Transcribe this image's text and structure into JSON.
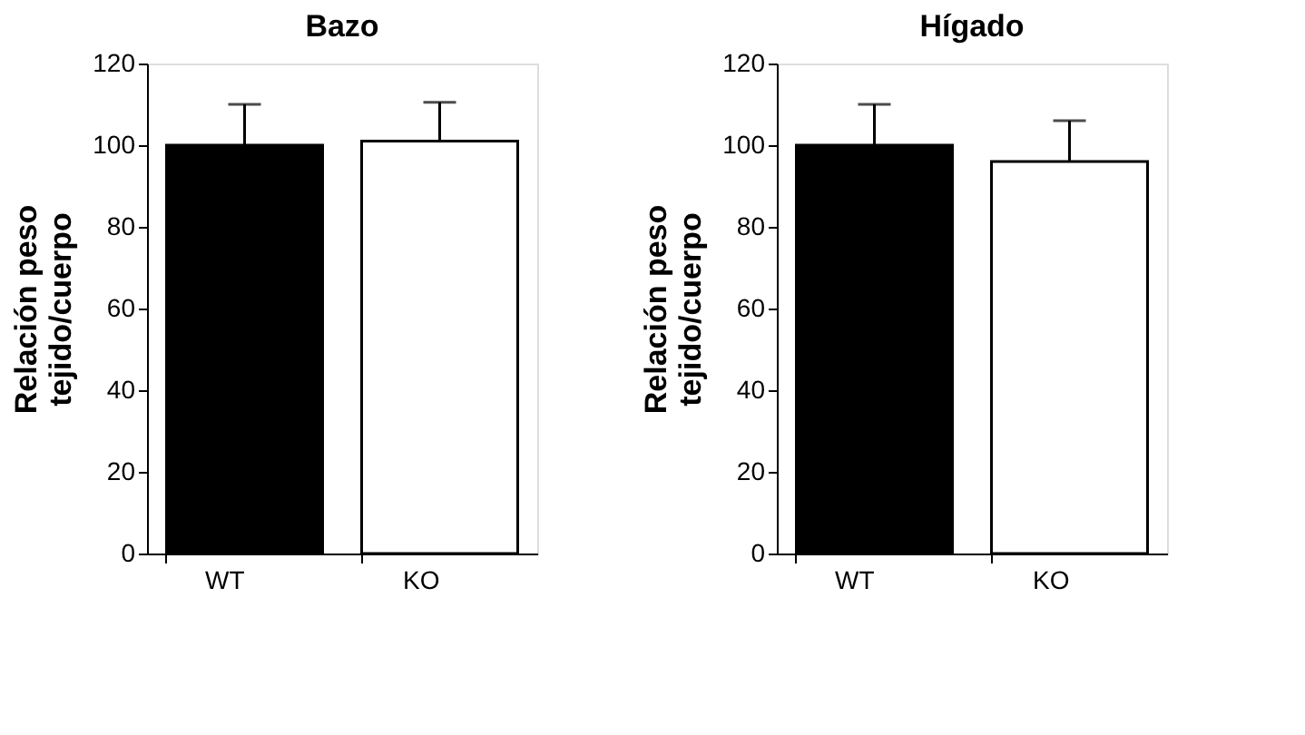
{
  "chart_data": [
    {
      "type": "bar",
      "title": "Bazo",
      "ylabel": "Relación peso\ntejido/cuerpo",
      "categories": [
        "WT",
        "KO"
      ],
      "values": [
        100,
        101
      ],
      "colors": [
        "#000000",
        "#ffffff"
      ],
      "errors": [
        [
          100,
          110
        ],
        [
          101,
          110.5
        ]
      ],
      "ylim": [
        0,
        120
      ],
      "yticks": [
        0,
        20,
        40,
        60,
        80,
        100,
        120
      ],
      "grid": false
    },
    {
      "type": "bar",
      "title": "Hígado",
      "ylabel": "Relación peso\ntejido/cuerpo",
      "categories": [
        "WT",
        "KO"
      ],
      "values": [
        100,
        96
      ],
      "colors": [
        "#000000",
        "#ffffff"
      ],
      "errors": [
        [
          100,
          110
        ],
        [
          96,
          106
        ]
      ],
      "ylim": [
        0,
        120
      ],
      "yticks": [
        0,
        20,
        40,
        60,
        80,
        100,
        120
      ],
      "grid": false
    }
  ]
}
